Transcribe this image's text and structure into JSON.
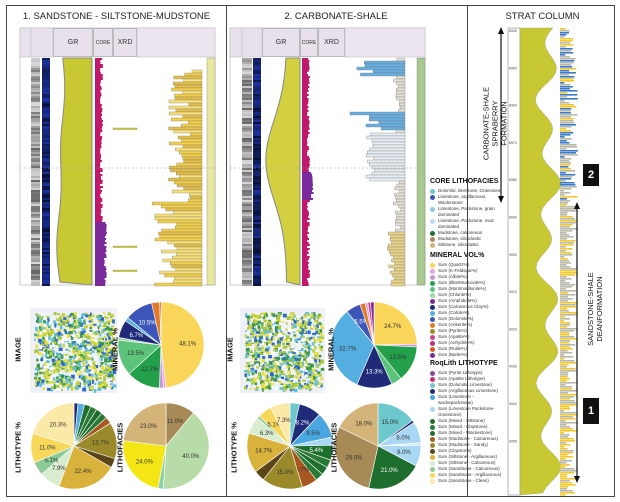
{
  "panels": [
    {
      "title": "1. SANDSTONE - SILTSTONE-MUDSTONE",
      "headers": {
        "gr": "GR",
        "core": "CORE",
        "xrd": "XRD"
      }
    },
    {
      "title": "2. CARBONATE-SHALE",
      "headers": {
        "gr": "GR",
        "core": "CORE",
        "xrd": "XRD"
      }
    }
  ],
  "strat": {
    "title": "STRAT COLUMN",
    "depths": [
      "8940",
      "8950",
      "8960",
      "8970",
      "8980",
      "8990",
      "9000",
      "9010",
      "9020",
      "9030",
      "9040",
      "9050"
    ],
    "upper_label": [
      "CARBONATE-SHALE",
      "SPRABERRY",
      "FORMATION"
    ],
    "lower_label": [
      "SANDSTONE-SHALE",
      "DEANFORMATION"
    ],
    "badge_upper": "2",
    "badge_lower": "1"
  },
  "pie_labels": {
    "image": "IMAGE",
    "mineral": "MINERAL %",
    "lithotype": "LITHOTYPE %",
    "lithofacies": "LITHOFACIES"
  },
  "chart_data": [
    {
      "type": "pie",
      "panel": 1,
      "kind": "mineral",
      "slices": [
        {
          "v": 48.1,
          "c": "#f9d65a",
          "label": "48.1%"
        },
        {
          "v": 1,
          "c": "#e8a3d8"
        },
        {
          "v": 1.5,
          "c": "#c996d6"
        },
        {
          "v": 12.7,
          "c": "#22a04a",
          "label": "12.7%"
        },
        {
          "v": 13.5,
          "c": "#5cc47a",
          "label": "13.5%"
        },
        {
          "v": 1,
          "c": "#9ed8a8"
        },
        {
          "v": 6.7,
          "c": "#1f2a78",
          "label": "6.7%"
        },
        {
          "v": 1.5,
          "c": "#55aee0"
        },
        {
          "v": 10.5,
          "c": "#3c55b8",
          "label": "10.5%"
        },
        {
          "v": 3,
          "c": "#e37a2a"
        },
        {
          "v": 0.5,
          "c": "#c03030"
        }
      ]
    },
    {
      "type": "pie",
      "panel": 1,
      "kind": "lithotype",
      "slices": [
        {
          "v": 1.5,
          "c": "#1f2a78"
        },
        {
          "v": 2.5,
          "c": "#55aee0"
        },
        {
          "v": 2.4,
          "c": "#1e6e2e"
        },
        {
          "v": 2.4,
          "c": "#2a7a35"
        },
        {
          "v": 2.4,
          "c": "#1e6e2e"
        },
        {
          "v": 2.4,
          "c": "#2a7a35"
        },
        {
          "v": 2.5,
          "c": "#a8581e"
        },
        {
          "v": 13.7,
          "c": "#9a8a2a",
          "label": "13.7%"
        },
        {
          "v": 3.5,
          "c": "#5a4418"
        },
        {
          "v": 22.4,
          "c": "#d8b23a",
          "label": "22.4%"
        },
        {
          "v": 7.9,
          "c": "#d8ecd0",
          "label": "7.9%"
        },
        {
          "v": 5.1,
          "c": "#8ccc94",
          "label": "5.1%"
        },
        {
          "v": 11.0,
          "c": "#f7d85a",
          "label": "11.0%"
        },
        {
          "v": 20.3,
          "c": "#fbe9a8",
          "label": "20.3%"
        }
      ]
    },
    {
      "type": "pie",
      "panel": 1,
      "kind": "lithofacies",
      "slices": [
        {
          "v": 11.0,
          "c": "#a88a56",
          "label": "11.0%"
        },
        {
          "v": 40.0,
          "c": "#b8dca8",
          "label": "40.0%"
        },
        {
          "v": 2,
          "c": "#8cd0a8"
        },
        {
          "v": 24.0,
          "c": "#f4e614",
          "label": "24.0%"
        },
        {
          "v": 23.0,
          "c": "#d4b478",
          "label": "23.0%"
        }
      ]
    },
    {
      "type": "pie",
      "panel": 2,
      "kind": "mineral",
      "slices": [
        {
          "v": 24.7,
          "c": "#f9d65a",
          "label": "24.7%"
        },
        {
          "v": 1,
          "c": "#c996d6"
        },
        {
          "v": 13.5,
          "c": "#22a04a",
          "label": "13.5%"
        },
        {
          "v": 4,
          "c": "#5cc47a"
        },
        {
          "v": 13.3,
          "c": "#1f2a78",
          "label": "13.3%"
        },
        {
          "v": 32.7,
          "c": "#55aee0",
          "label": "32.7%"
        },
        {
          "v": 5.5,
          "c": "#3c55b8",
          "label": "5.5%"
        },
        {
          "v": 2,
          "c": "#e37a2a"
        },
        {
          "v": 1,
          "c": "#e8a3d8"
        },
        {
          "v": 1,
          "c": "#d04090"
        },
        {
          "v": 1.3,
          "c": "#7a2a9a"
        }
      ]
    },
    {
      "type": "pie",
      "panel": 2,
      "kind": "lithotype",
      "slices": [
        {
          "v": 3.5,
          "c": "#6cc8cc"
        },
        {
          "v": 8.2,
          "c": "#1f2a78",
          "label": "8.2%"
        },
        {
          "v": 9.5,
          "c": "#4aa6e0",
          "label": "9.5%"
        },
        {
          "v": 3,
          "c": "#a8d8f4"
        },
        {
          "v": 5.4,
          "c": "#1e6e2e",
          "label": "5.4%"
        },
        {
          "v": 3,
          "c": "#2a7a35"
        },
        {
          "v": 3,
          "c": "#1e6e2e"
        },
        {
          "v": 3,
          "c": "#2a7a35"
        },
        {
          "v": 5.7,
          "c": "#a8581e",
          "label": "5.7%"
        },
        {
          "v": 15.0,
          "c": "#9a8a2a",
          "label": "15.0%"
        },
        {
          "v": 4,
          "c": "#5a4418"
        },
        {
          "v": 14.7,
          "c": "#d8b23a",
          "label": "14.7%"
        },
        {
          "v": 6.3,
          "c": "#d8ecd0",
          "label": "6.3%"
        },
        {
          "v": 1,
          "c": "#8ccc94"
        },
        {
          "v": 5.1,
          "c": "#f7d85a",
          "label": "5.1%"
        },
        {
          "v": 7.3,
          "c": "#fbe9a8",
          "label": "7.3%"
        }
      ]
    },
    {
      "type": "pie",
      "panel": 2,
      "kind": "lithofacies",
      "slices": [
        {
          "v": 15.0,
          "c": "#6cc8cc",
          "label": "15.0%"
        },
        {
          "v": 1,
          "c": "#1f2a78"
        },
        {
          "v": 8.0,
          "c": "#a8d8f4",
          "label": "8.0%"
        },
        {
          "v": 1,
          "c": "#d0ecf8"
        },
        {
          "v": 8.0,
          "c": "#a8d8f4",
          "label": "8.0%"
        },
        {
          "v": 21.0,
          "c": "#1e6e2e",
          "label": "21.0%"
        },
        {
          "v": 29.0,
          "c": "#a88a56",
          "label": "29.0%"
        },
        {
          "v": 18.0,
          "c": "#d4b478",
          "label": "18.0%"
        }
      ]
    }
  ],
  "legends": [
    {
      "title": "CORE LITHOFACIES",
      "items": [
        {
          "t": "Dolomitic limestone, Grainstone",
          "c": "#6cc8cc"
        },
        {
          "t": "Limestone, argillaceous, Wackestone",
          "c": "#3c55b8"
        },
        {
          "t": "Limestone, Packstone, grain dominated",
          "c": "#8cc8ec"
        },
        {
          "t": "Limestone, Packstone, mud dominated",
          "c": "#b8dcf4"
        },
        {
          "t": "Mudstone, calcareous",
          "c": "#1e6e2e"
        },
        {
          "t": "Mudstone, siliciclastic",
          "c": "#a88a56"
        },
        {
          "t": "Siltstone, siliciclastic",
          "c": "#d4b478"
        }
      ]
    },
    {
      "title": "MINERAL VOL%",
      "items": [
        {
          "t": "Sum (Quartz%)",
          "c": "#f9d65a"
        },
        {
          "t": "Sum (K-Feldspar%)",
          "c": "#e8a3d8"
        },
        {
          "t": "Sum (Albite%)",
          "c": "#c996d6"
        },
        {
          "t": "Sum (Illite/Muscovite%)",
          "c": "#22a04a"
        },
        {
          "t": "Sum (Montmorillonite%)",
          "c": "#5cc47a"
        },
        {
          "t": "Sum (Chlorite%)",
          "c": "#9ed8a8"
        },
        {
          "t": "Sum (Amphibole%)",
          "c": "#7a2a9a"
        },
        {
          "t": "Sum (Calcareous Clay%)",
          "c": "#1f2a78"
        },
        {
          "t": "Sum (Calcite%)",
          "c": "#55aee0"
        },
        {
          "t": "Sum (Dolomite%)",
          "c": "#3c55b8"
        },
        {
          "t": "Sum (Ankerite%)",
          "c": "#e37a2a"
        },
        {
          "t": "Sum (Pyrite%)",
          "c": "#9a8a2a"
        },
        {
          "t": "Sum (Apatite%)",
          "c": "#d04090"
        },
        {
          "t": "Sum (Anhydrite%)",
          "c": "#c0307a"
        },
        {
          "t": "Sum (Rutile%)",
          "c": "#e05a20"
        },
        {
          "t": "Sum (Barite%)",
          "c": "#7a2a9a"
        }
      ]
    },
    {
      "title": "RoqLith LITHOTYPE",
      "items": [
        {
          "t": "Sum (Pyrite Lithotype)",
          "c": "#8a4a9a"
        },
        {
          "t": "Sum (Apatite Lithotype)",
          "c": "#c0307a"
        },
        {
          "t": "Sum (Dolomitic Limestone)",
          "c": "#6cc8cc"
        },
        {
          "t": "Sum (Argillaceous Limestone)",
          "c": "#1f2a78"
        },
        {
          "t": "Sum (Limestone - wackepackstone)",
          "c": "#4aa6e0"
        },
        {
          "t": "Sum (Limestone Packstone-Grainstone)",
          "c": "#a8d8f4"
        },
        {
          "t": "Sum (Mixed - Siltstone)",
          "c": "#1e6e2e"
        },
        {
          "t": "Sum (Mixed - Claystone)",
          "c": "#2a7a35"
        },
        {
          "t": "Sum (Mixed - Wackestone)",
          "c": "#1e6e2e"
        },
        {
          "t": "Sum (Mudstone - Calcareous)",
          "c": "#a8581e"
        },
        {
          "t": "Sum (Mudstone - Sandy)",
          "c": "#9a8a2a"
        },
        {
          "t": "Sum (Claystone)",
          "c": "#5a4418"
        },
        {
          "t": "Sum (Siltstone - Argillaceous)",
          "c": "#d8b23a"
        },
        {
          "t": "Sum (Siltstone - Calcareous)",
          "c": "#d8ecd0"
        },
        {
          "t": "Sum (Sandstone - Calcareous)",
          "c": "#8ccc94"
        },
        {
          "t": "Sum (Sandstone - Argillaceous)",
          "c": "#f7d85a"
        },
        {
          "t": "Sum (Sandstone - Clean)",
          "c": "#fbe9a8"
        }
      ]
    }
  ]
}
